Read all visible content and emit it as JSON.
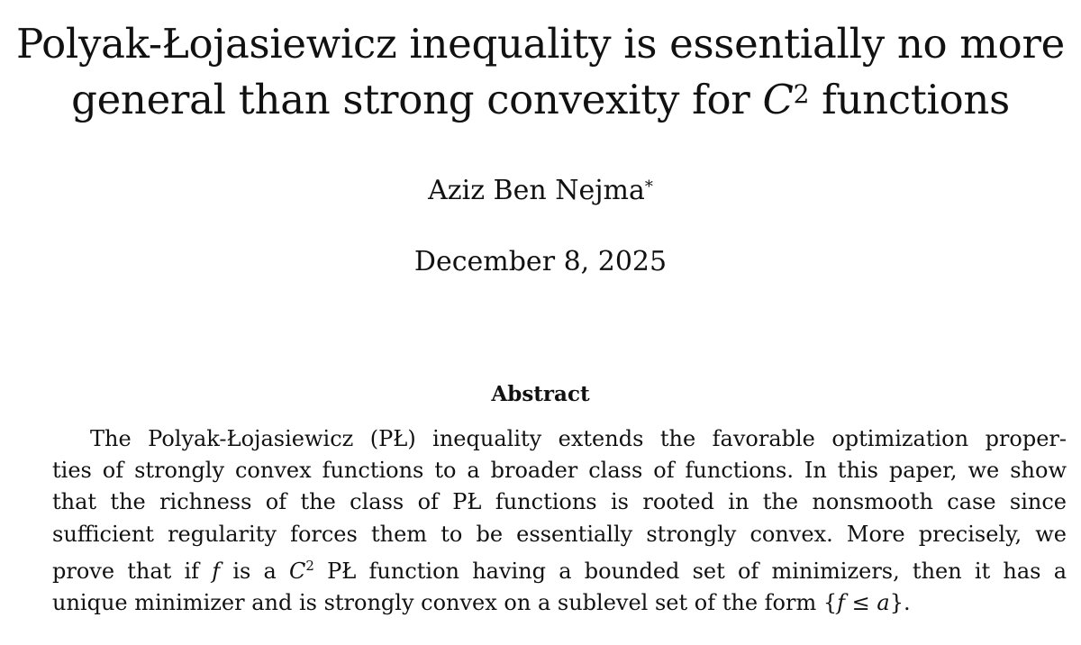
{
  "paper": {
    "title_line1": "Polyak-Łojasiewicz inequality is essentially no more",
    "title_line2_pre": "general than strong convexity for ",
    "title_math_symbol": "C",
    "title_math_exp": "2",
    "title_line2_post": " functions",
    "author_name": "Aziz Ben Nejma",
    "author_mark": "*",
    "date": "December 8, 2025"
  },
  "abstract": {
    "heading": "Abstract",
    "lines": [
      "The Polyak-Łojasiewicz (PŁ) inequality extends the favorable optimization proper-",
      "ties of strongly convex functions to a broader class of functions. In this paper, we show",
      "that the richness of the class of PŁ functions is rooted in the nonsmooth case since",
      "sufficient regularity forces them to be essentially strongly convex. More precisely, we"
    ],
    "line5_pre": "prove that if ",
    "line5_f": "f",
    "line5_mid": " is a ",
    "line5_C": "C",
    "line5_exp": "2",
    "line5_post": " PŁ function having a bounded set of minimizers, then it has a",
    "line6_pre": "unique minimizer and is strongly convex on a sublevel set of the form {",
    "line6_f": "f",
    "line6_mid": " ≤ ",
    "line6_a": "a",
    "line6_post": "}."
  }
}
